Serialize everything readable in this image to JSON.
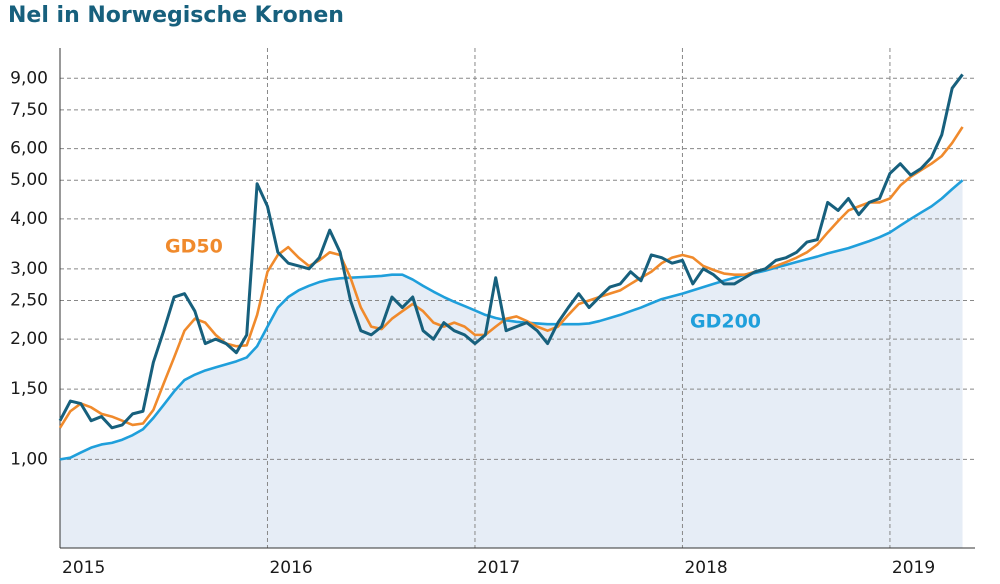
{
  "chart_data": {
    "type": "line",
    "title": "Nel in Norwegische Kronen",
    "log_y": true,
    "grid": true,
    "xlim": [
      2015,
      2019.41
    ],
    "xticks": [
      2015,
      2016,
      2017,
      2018,
      2019
    ],
    "ylim": [
      0.6,
      10
    ],
    "yticks": [
      {
        "value": 1,
        "label": "1,00"
      },
      {
        "value": 1.5,
        "label": "1,50"
      },
      {
        "value": 2,
        "label": "2,00"
      },
      {
        "value": 2.5,
        "label": "2,50"
      },
      {
        "value": 3,
        "label": "3,00"
      },
      {
        "value": 4,
        "label": "4,00"
      },
      {
        "value": 5,
        "label": "5,00"
      },
      {
        "value": 6,
        "label": "6,00"
      },
      {
        "value": 7.5,
        "label": "7,50"
      },
      {
        "value": 9,
        "label": "9,00"
      }
    ],
    "x": [
      2015.0,
      2015.05,
      2015.1,
      2015.15,
      2015.2,
      2015.25,
      2015.3,
      2015.35,
      2015.4,
      2015.45,
      2015.5,
      2015.55,
      2015.6,
      2015.65,
      2015.7,
      2015.75,
      2015.8,
      2015.85,
      2015.9,
      2015.95,
      2016.0,
      2016.05,
      2016.1,
      2016.15,
      2016.2,
      2016.25,
      2016.3,
      2016.35,
      2016.4,
      2016.45,
      2016.5,
      2016.55,
      2016.6,
      2016.65,
      2016.7,
      2016.75,
      2016.8,
      2016.85,
      2016.9,
      2016.95,
      2017.0,
      2017.05,
      2017.1,
      2017.15,
      2017.2,
      2017.25,
      2017.3,
      2017.35,
      2017.4,
      2017.45,
      2017.5,
      2017.55,
      2017.6,
      2017.65,
      2017.7,
      2017.75,
      2017.8,
      2017.85,
      2017.9,
      2017.95,
      2018.0,
      2018.05,
      2018.1,
      2018.15,
      2018.2,
      2018.25,
      2018.3,
      2018.35,
      2018.4,
      2018.45,
      2018.5,
      2018.55,
      2018.6,
      2018.65,
      2018.7,
      2018.75,
      2018.8,
      2018.85,
      2018.9,
      2018.95,
      2019.0,
      2019.05,
      2019.1,
      2019.15,
      2019.2,
      2019.25,
      2019.3,
      2019.35
    ],
    "series": [
      {
        "color": "#17607d",
        "values": [
          1.25,
          1.4,
          1.38,
          1.25,
          1.28,
          1.2,
          1.22,
          1.3,
          1.32,
          1.75,
          2.1,
          2.55,
          2.6,
          2.35,
          1.95,
          2.0,
          1.95,
          1.85,
          2.05,
          4.9,
          4.3,
          3.3,
          3.1,
          3.05,
          3.0,
          3.2,
          3.75,
          3.3,
          2.5,
          2.1,
          2.05,
          2.15,
          2.55,
          2.4,
          2.55,
          2.1,
          2.0,
          2.2,
          2.1,
          2.05,
          1.95,
          2.05,
          2.85,
          2.1,
          2.15,
          2.2,
          2.1,
          1.95,
          2.2,
          2.4,
          2.6,
          2.4,
          2.55,
          2.7,
          2.75,
          2.95,
          2.8,
          3.25,
          3.2,
          3.1,
          3.15,
          2.75,
          3.0,
          2.9,
          2.75,
          2.75,
          2.85,
          2.95,
          3.0,
          3.15,
          3.2,
          3.3,
          3.5,
          3.55,
          4.4,
          4.2,
          4.5,
          4.1,
          4.4,
          4.5,
          5.2,
          5.5,
          5.15,
          5.35,
          5.7,
          6.5,
          8.5,
          9.2
        ]
      },
      {
        "name": "GD50",
        "color": "#f08a2c",
        "values": [
          1.2,
          1.32,
          1.38,
          1.35,
          1.3,
          1.28,
          1.25,
          1.22,
          1.23,
          1.33,
          1.55,
          1.8,
          2.1,
          2.25,
          2.2,
          2.05,
          1.95,
          1.92,
          1.93,
          2.3,
          2.95,
          3.25,
          3.4,
          3.2,
          3.05,
          3.15,
          3.3,
          3.25,
          2.85,
          2.4,
          2.15,
          2.12,
          2.25,
          2.35,
          2.45,
          2.35,
          2.2,
          2.15,
          2.2,
          2.15,
          2.05,
          2.05,
          2.15,
          2.25,
          2.28,
          2.22,
          2.15,
          2.1,
          2.15,
          2.3,
          2.45,
          2.5,
          2.55,
          2.6,
          2.65,
          2.75,
          2.85,
          2.95,
          3.1,
          3.2,
          3.25,
          3.2,
          3.05,
          2.98,
          2.92,
          2.9,
          2.9,
          2.95,
          3.0,
          3.05,
          3.12,
          3.2,
          3.3,
          3.45,
          3.7,
          3.95,
          4.2,
          4.3,
          4.4,
          4.4,
          4.5,
          4.85,
          5.1,
          5.3,
          5.5,
          5.75,
          6.2,
          6.8
        ]
      },
      {
        "name": "GD200",
        "color": "#1f9fdb",
        "values": [
          1.0,
          1.01,
          1.04,
          1.07,
          1.09,
          1.1,
          1.12,
          1.15,
          1.19,
          1.27,
          1.37,
          1.48,
          1.58,
          1.63,
          1.67,
          1.7,
          1.73,
          1.76,
          1.8,
          1.92,
          2.15,
          2.4,
          2.55,
          2.65,
          2.72,
          2.78,
          2.82,
          2.84,
          2.85,
          2.86,
          2.87,
          2.88,
          2.9,
          2.9,
          2.82,
          2.72,
          2.63,
          2.55,
          2.48,
          2.42,
          2.36,
          2.3,
          2.26,
          2.23,
          2.21,
          2.2,
          2.19,
          2.18,
          2.18,
          2.18,
          2.18,
          2.19,
          2.22,
          2.26,
          2.3,
          2.35,
          2.4,
          2.46,
          2.52,
          2.56,
          2.6,
          2.65,
          2.7,
          2.75,
          2.8,
          2.85,
          2.9,
          2.93,
          2.97,
          3.02,
          3.07,
          3.12,
          3.17,
          3.22,
          3.28,
          3.33,
          3.38,
          3.45,
          3.52,
          3.6,
          3.7,
          3.85,
          4.0,
          4.15,
          4.3,
          4.5,
          4.75,
          5.0
        ]
      }
    ],
    "area_fill": "#e6edf6"
  }
}
